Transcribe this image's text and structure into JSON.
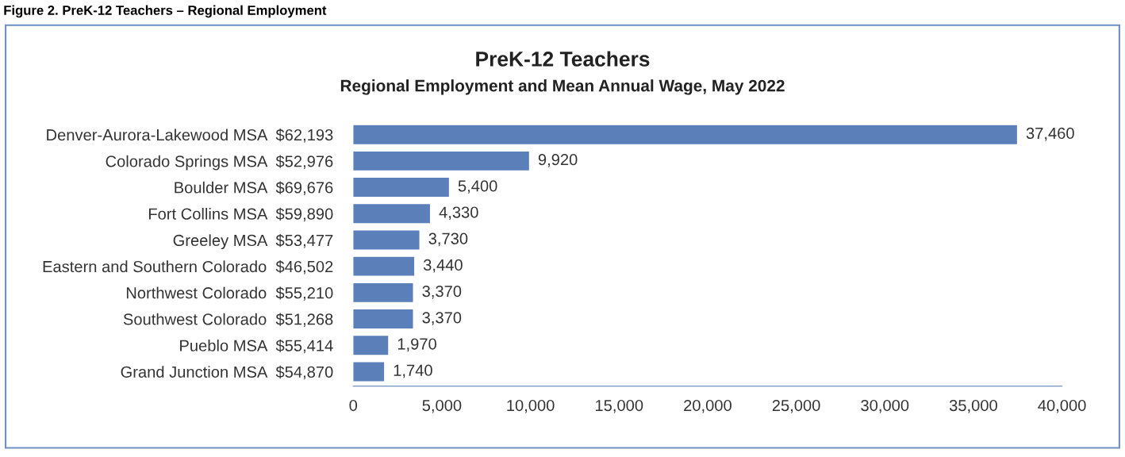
{
  "chart_data": {
    "type": "bar",
    "orientation": "horizontal",
    "title": "PreK-12 Teachers",
    "subtitle": "Regional Employment and Mean Annual Wage, May 2022",
    "annotations": [
      "Figure 2. PreK-12 Teachers – Regional Employment"
    ],
    "categories": [
      "Denver-Aurora-Lakewood MSA  $62,193",
      "Colorado Springs MSA  $52,976",
      "Boulder MSA  $69,676",
      "Fort Collins MSA  $59,890",
      "Greeley MSA  $53,477",
      "Eastern and Southern Colorado  $46,502",
      "Northwest Colorado  $55,210",
      "Southwest Colorado  $51,268",
      "Pueblo MSA  $55,414",
      "Grand Junction MSA  $54,870"
    ],
    "values": [
      37460,
      9920,
      5400,
      4330,
      3730,
      3440,
      3370,
      3370,
      1970,
      1740
    ],
    "value_labels": [
      "37,460",
      "9,920",
      "5,400",
      "4,330",
      "3,730",
      "3,440",
      "3,370",
      "3,370",
      "1,970",
      "1,740"
    ],
    "color": "#5b7fb9",
    "xlim": [
      0,
      40000
    ],
    "xticks": [
      0,
      {
        "value": 5000,
        "label": "5,000"
      },
      {
        "value": 10000,
        "label": "10,000"
      },
      {
        "value": 15000,
        "label": "15,000"
      },
      {
        "value": 20000,
        "label": "20,000"
      },
      {
        "value": 25000,
        "label": "25,000"
      },
      {
        "value": 30000,
        "label": "30,000"
      },
      {
        "value": 35000,
        "label": "35,000"
      },
      {
        "value": 40000,
        "label": "40,000"
      }
    ],
    "grid": false,
    "legend": false
  }
}
